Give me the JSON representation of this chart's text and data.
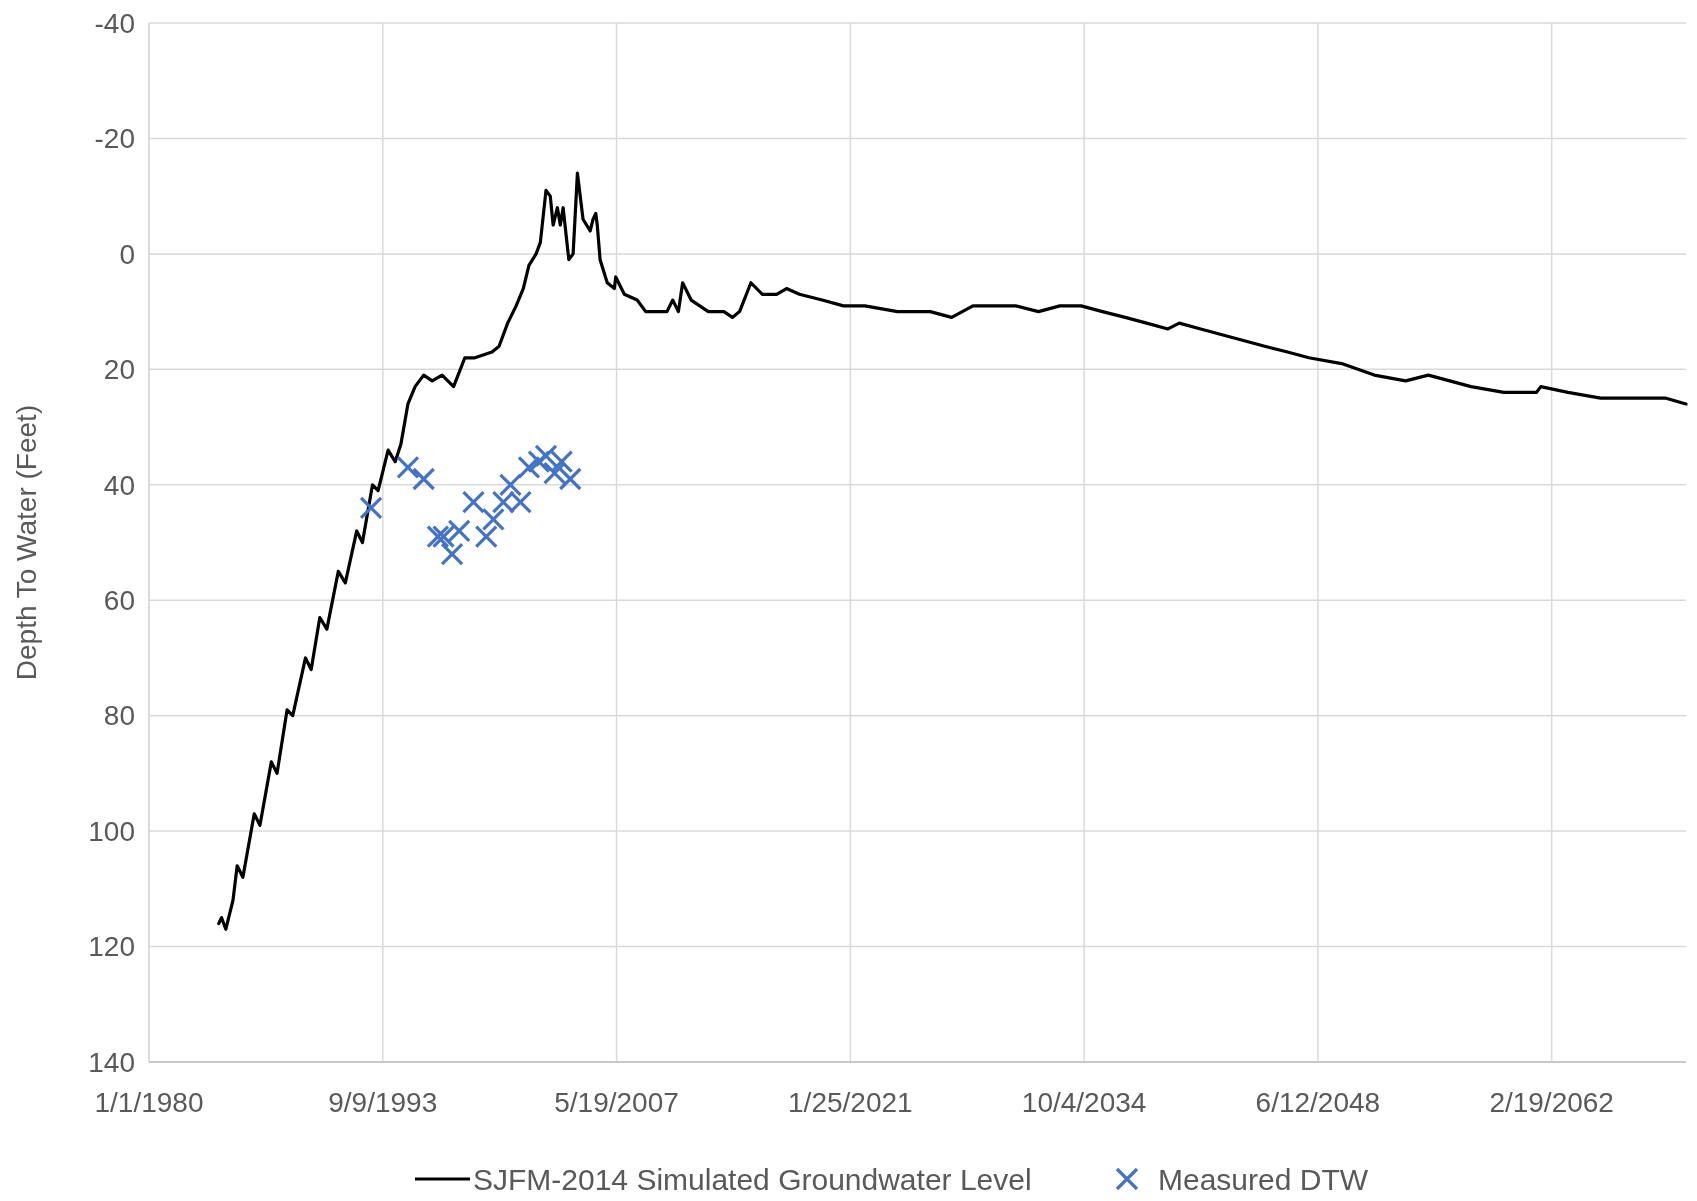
{
  "chart_data": {
    "type": "line",
    "ylabel": "Depth To Water (Feet)",
    "xlim": [
      "1980-01-01",
      "2070-01-01"
    ],
    "xticks": [
      {
        "value": "1980-01-01",
        "label": "1/1/1980"
      },
      {
        "value": "1993-09-09",
        "label": "9/9/1993"
      },
      {
        "value": "2007-05-19",
        "label": "5/19/2007"
      },
      {
        "value": "2021-01-25",
        "label": "1/25/2021"
      },
      {
        "value": "2034-10-04",
        "label": "10/4/2034"
      },
      {
        "value": "2048-06-12",
        "label": "6/12/2048"
      },
      {
        "value": "2062-02-19",
        "label": "2/19/2062"
      }
    ],
    "ylim": [
      140,
      -40
    ],
    "yticks": [
      -40,
      -20,
      0,
      20,
      40,
      60,
      80,
      100,
      120,
      140
    ],
    "grid": true,
    "legend": "bottom",
    "series": [
      {
        "name": "SJFM-2014 Simulated Groundwater Level",
        "color": "#000000",
        "marker": "none",
        "line_style": "solid",
        "x": [
          "1984-02",
          "1984-04",
          "1984-07",
          "1984-12",
          "1985-03",
          "1985-07",
          "1986-03",
          "1986-07",
          "1987-03",
          "1987-07",
          "1988-02",
          "1988-06",
          "1989-03",
          "1989-07",
          "1990-01",
          "1990-06",
          "1991-02",
          "1991-07",
          "1992-03",
          "1992-07",
          "1993-02",
          "1993-06",
          "1994-01",
          "1994-06",
          "1994-10",
          "1995-03",
          "1995-08",
          "1996-02",
          "1996-08",
          "1997-03",
          "1997-11",
          "1998-07",
          "1999-02",
          "2000-02",
          "2000-07",
          "2001-01",
          "2001-07",
          "2001-12",
          "2002-04",
          "2002-09",
          "2002-12",
          "2003-04",
          "2003-07",
          "2003-09",
          "2003-12",
          "2004-02",
          "2004-04",
          "2004-08",
          "2004-11",
          "2005-02",
          "2005-06",
          "2005-11",
          "2006-01",
          "2006-03",
          "2006-04",
          "2006-06",
          "2006-11",
          "2007-04",
          "2007-05",
          "2007-11",
          "2008-08",
          "2009-02",
          "2009-11",
          "2010-05",
          "2010-09",
          "2011-01",
          "2011-04",
          "2011-10",
          "2012-04",
          "2012-10",
          "2013-09",
          "2014-03",
          "2014-08",
          "2015-04",
          "2015-12",
          "2016-05",
          "2016-10",
          "2017-05",
          "2018-02",
          "2019-06",
          "2020-09",
          "2021-12",
          "2023-11",
          "2025-10",
          "2027-01",
          "2028-04",
          "2029-07",
          "2030-10",
          "2032-02",
          "2033-05",
          "2034-08",
          "2035-11",
          "2037-03",
          "2038-06",
          "2039-09",
          "2040-05",
          "2041-08",
          "2042-11",
          "2044-02",
          "2045-05",
          "2046-09",
          "2047-12",
          "2049-11",
          "2051-10",
          "2053-08",
          "2054-12",
          "2056-03",
          "2057-06",
          "2059-05",
          "2061-04",
          "2061-07",
          "2063-02",
          "2065-01",
          "2066-12",
          "2068-11",
          "2070-01"
        ],
        "values": [
          116,
          115,
          117,
          112,
          106,
          108,
          97,
          99,
          88,
          90,
          79,
          80,
          70,
          72,
          63,
          65,
          55,
          57,
          48,
          50,
          40,
          41,
          34,
          36,
          33,
          26,
          23,
          21,
          22,
          21,
          23,
          18,
          18,
          17,
          16,
          12,
          9,
          6,
          2,
          0,
          -2,
          -11,
          -10,
          -5,
          -8,
          -5,
          -8,
          1,
          0,
          -14,
          -6,
          -4,
          -6,
          -7,
          -5,
          1,
          5,
          6,
          4,
          7,
          8,
          10,
          10,
          10,
          8,
          10,
          5,
          8,
          9,
          10,
          10,
          11,
          10,
          5,
          7,
          7,
          7,
          6,
          7,
          8,
          9,
          9,
          10,
          10,
          11,
          9,
          9,
          9,
          10,
          9,
          9,
          10,
          11,
          12,
          13,
          12,
          13,
          14,
          15,
          16,
          17,
          18,
          19,
          21,
          22,
          21,
          22,
          23,
          24,
          24,
          23,
          24,
          25,
          25,
          25,
          26
        ]
      },
      {
        "name": "Measured DTW",
        "type": "scatter",
        "color": "#4472c4",
        "marker": "cross",
        "x": [
          "1993-01",
          "1995-03",
          "1996-02",
          "1996-12",
          "1997-04",
          "1997-10",
          "1998-03",
          "1999-01",
          "1999-10",
          "2000-03",
          "2000-10",
          "2001-03",
          "2001-10",
          "2002-04",
          "2002-11",
          "2003-04",
          "2003-10",
          "2004-03",
          "2004-09"
        ],
        "values": [
          44,
          37,
          39,
          49,
          49,
          52,
          48,
          43,
          49,
          46,
          43,
          40,
          43,
          37,
          36,
          35,
          38,
          36,
          39
        ]
      }
    ]
  }
}
